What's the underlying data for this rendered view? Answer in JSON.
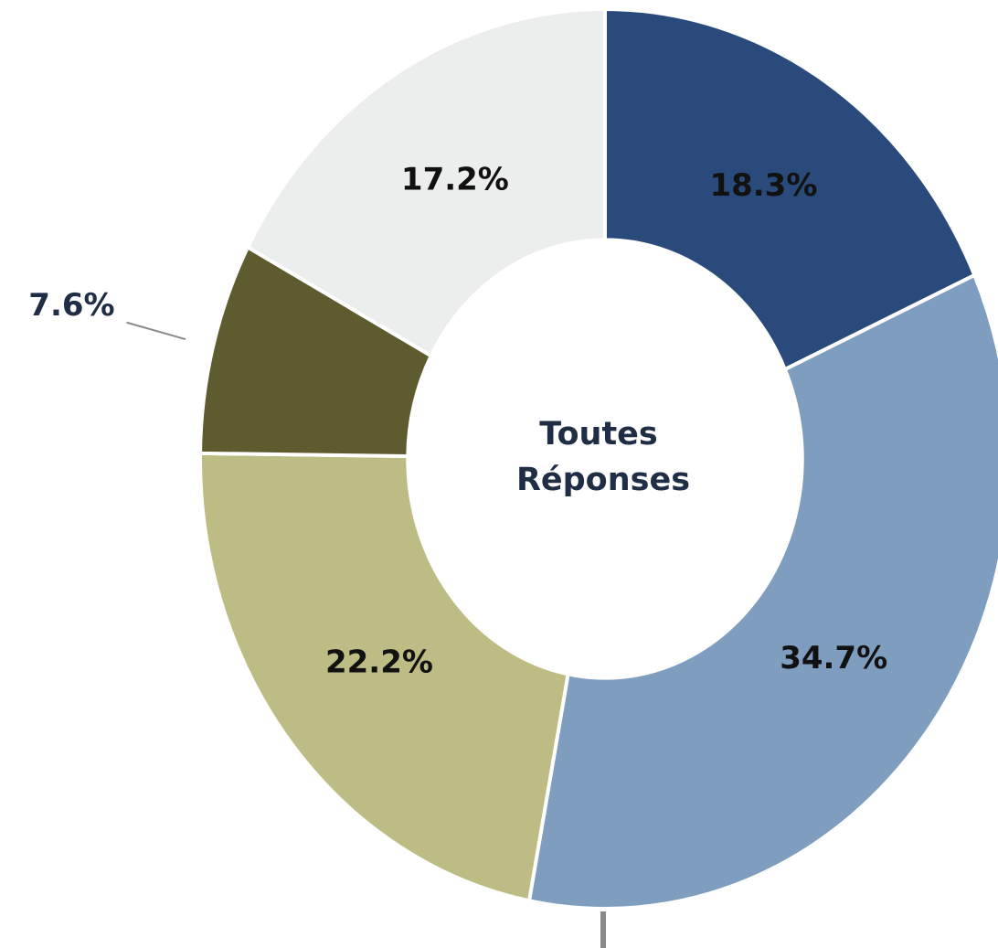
{
  "chart_data": {
    "type": "donut",
    "center_label": [
      "Toutes",
      "Réponses"
    ],
    "values": [
      18.3,
      34.7,
      22.2,
      7.6,
      17.2
    ],
    "value_labels": [
      "18.3%",
      "34.7%",
      "22.2%",
      "7.6%",
      "17.2%"
    ],
    "colors": [
      "#2a4a7c",
      "#7f9dbf",
      "#bdbc84",
      "#5e5c2e",
      "#eceeed"
    ]
  }
}
